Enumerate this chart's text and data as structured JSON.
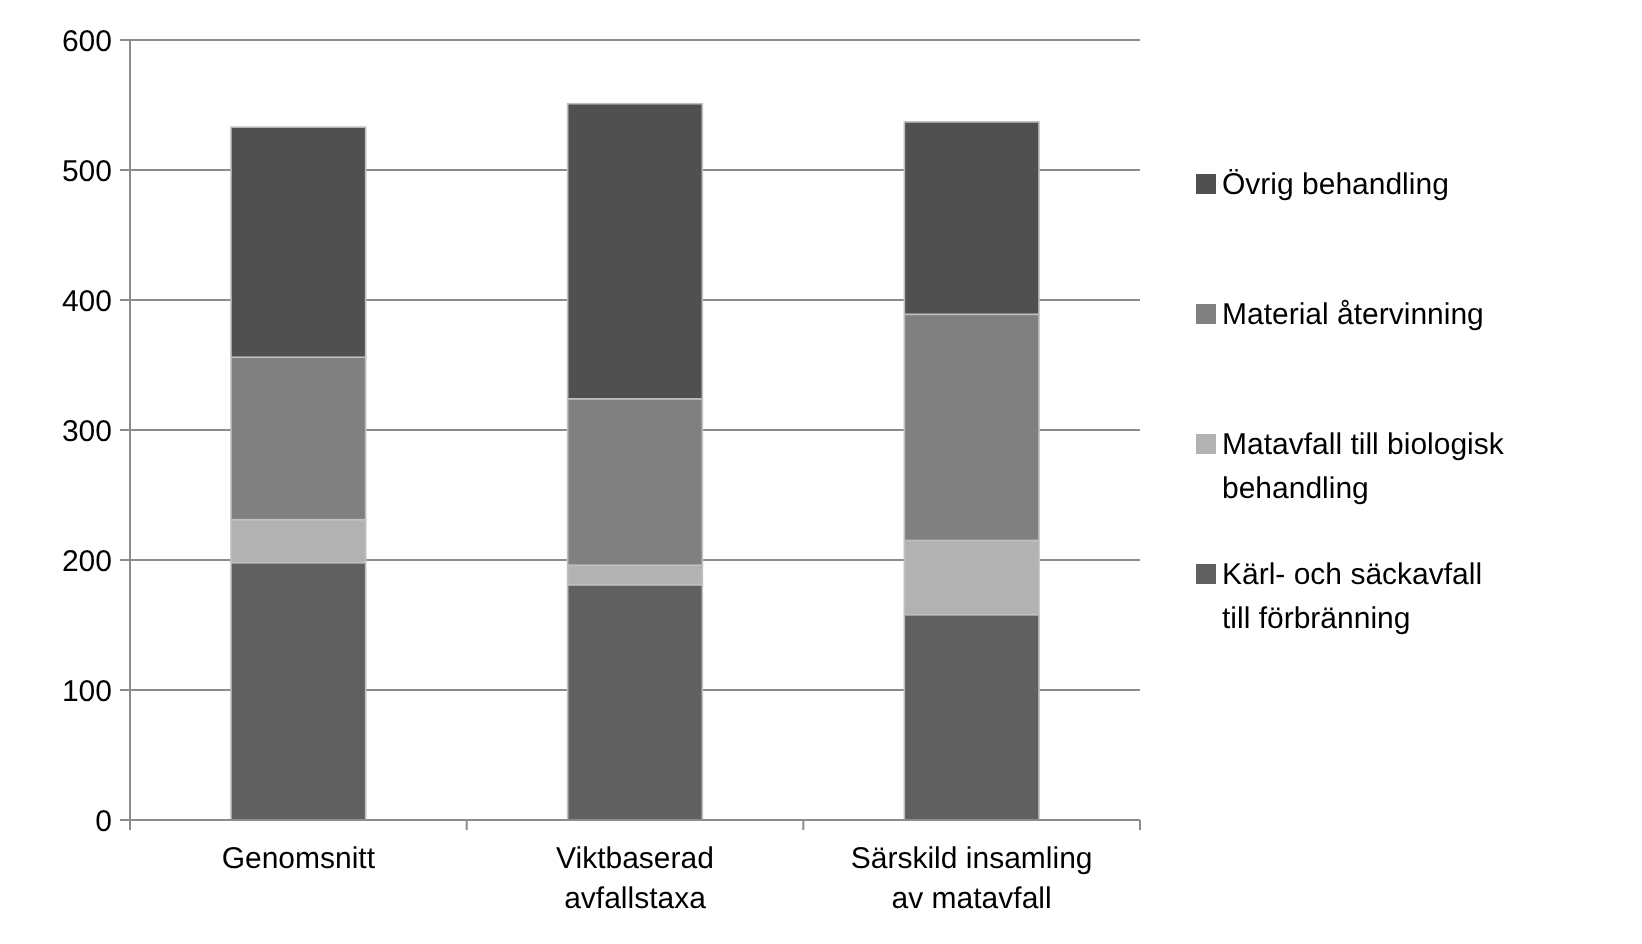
{
  "chart_data": {
    "type": "bar",
    "stacked": true,
    "categories": [
      "Genomsnitt",
      "Viktbaserad avfallstaxa",
      "Särskild insamling av matavfall"
    ],
    "series": [
      {
        "name": "Kärl- och säckavfall till förbränning",
        "color": "#606060",
        "values": [
          198,
          181,
          158
        ]
      },
      {
        "name": "Matavfall till biologisk behandling",
        "color": "#b2b2b2",
        "values": [
          33,
          15,
          57
        ]
      },
      {
        "name": "Material återvinning",
        "color": "#808080",
        "values": [
          125,
          128,
          174
        ]
      },
      {
        "name": "Övrig behandling",
        "color": "#505050",
        "values": [
          177,
          227,
          148
        ]
      }
    ],
    "ylim": [
      0,
      600
    ],
    "yticks": [
      0,
      100,
      200,
      300,
      400,
      500,
      600
    ],
    "grid": "y",
    "legend": "right"
  }
}
